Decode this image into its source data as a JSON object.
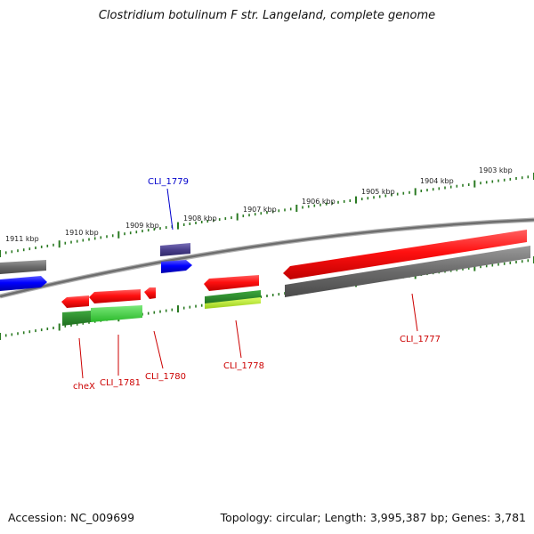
{
  "title": "Clostridium botulinum F str. Langeland, complete genome",
  "footer": {
    "accession": "Accession: NC_009699",
    "summary": "Topology: circular; Length: 3,995,387 bp; Genes: 3,781"
  },
  "colors": {
    "background": "#ffffff",
    "backbone": "#808080",
    "ticks": "#2a7a22",
    "forward_gene": "#ff1a1a",
    "reverse_gene": "#0000ff",
    "selected_gene": "#4a3f8c",
    "other_gene": "#666666",
    "green_dark": "#2c8c2c",
    "green_light": "#46d246",
    "label_red": "#cc0000",
    "label_blue": "#0000cc"
  },
  "kbp_labels": [
    "1911 kbp",
    "1910 kbp",
    "1909 kbp",
    "1908 kbp",
    "1907 kbp",
    "1906 kbp",
    "1905 kbp",
    "1904 kbp",
    "1903 kbp"
  ],
  "gene_labels": [
    {
      "id": "CLI_1779",
      "strand": "forward",
      "color": "label_blue"
    },
    {
      "id": "cheX",
      "strand": "reverse",
      "color": "label_red"
    },
    {
      "id": "CLI_1781",
      "strand": "reverse",
      "color": "label_red"
    },
    {
      "id": "CLI_1780",
      "strand": "reverse",
      "color": "label_red"
    },
    {
      "id": "CLI_1778",
      "strand": "reverse",
      "color": "label_red"
    },
    {
      "id": "CLI_1777",
      "strand": "reverse",
      "color": "label_red"
    }
  ]
}
